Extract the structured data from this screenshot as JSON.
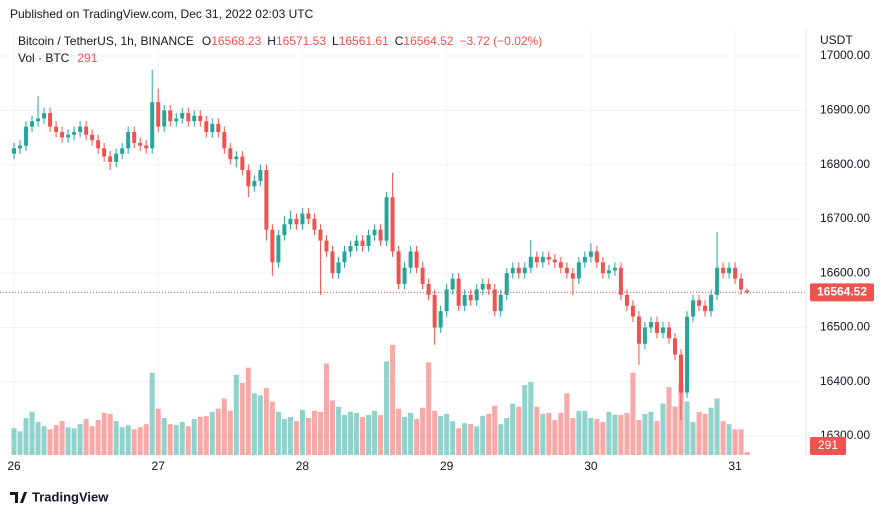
{
  "chart_data": {
    "type": "candlestick",
    "published": "Published on TradingView.com, Dec 31, 2022 02:03 UTC",
    "symbol": "Bitcoin / TetherUS, 1h, BINANCE",
    "legend_keys": [
      "O",
      "H",
      "L",
      "C"
    ],
    "change": "−3.72 (−0.02%)",
    "volume_label": "Vol · BTC",
    "currency": "USDT",
    "brand": "TradingView",
    "up_color": "#26a69a",
    "down_color": "#ef5350",
    "grid": true,
    "xlim": [
      -2.33,
      131.8
    ],
    "xticks": [
      {
        "value": 0,
        "label": "26"
      },
      {
        "value": 24,
        "label": "27"
      },
      {
        "value": 48,
        "label": "28"
      },
      {
        "value": 72,
        "label": "29"
      },
      {
        "value": 96,
        "label": "30"
      },
      {
        "value": 120,
        "label": "31"
      }
    ],
    "ylim": [
      16265,
      17048
    ],
    "yticks": [
      {
        "value": 16300,
        "label": "16300.00"
      },
      {
        "value": 16400,
        "label": "16400.00"
      },
      {
        "value": 16500,
        "label": "16500.00"
      },
      {
        "value": 16600,
        "label": "16600.00"
      },
      {
        "value": 16700,
        "label": "16700.00"
      },
      {
        "value": 16800,
        "label": "16800.00"
      },
      {
        "value": 16900,
        "label": "16900.00"
      },
      {
        "value": 17000,
        "label": "17000.00"
      }
    ],
    "x": [
      0,
      1,
      2,
      3,
      4,
      5,
      6,
      7,
      8,
      9,
      10,
      11,
      12,
      13,
      14,
      15,
      16,
      17,
      18,
      19,
      20,
      21,
      22,
      23,
      24,
      25,
      26,
      27,
      28,
      29,
      30,
      31,
      32,
      33,
      34,
      35,
      36,
      37,
      38,
      39,
      40,
      41,
      42,
      43,
      44,
      45,
      46,
      47,
      48,
      49,
      50,
      51,
      52,
      53,
      54,
      55,
      56,
      57,
      58,
      59,
      60,
      61,
      62,
      63,
      64,
      65,
      66,
      67,
      68,
      69,
      70,
      71,
      72,
      73,
      74,
      75,
      76,
      77,
      78,
      79,
      80,
      81,
      82,
      83,
      84,
      85,
      86,
      87,
      88,
      89,
      90,
      91,
      92,
      93,
      94,
      95,
      96,
      97,
      98,
      99,
      100,
      101,
      102,
      103,
      104,
      105,
      106,
      107,
      108,
      109,
      110,
      111,
      112,
      113,
      114,
      115,
      116,
      117,
      118,
      119,
      120,
      121,
      122
    ],
    "open": [
      16820,
      16830,
      16835,
      16870,
      16880,
      16885,
      16895,
      16870,
      16860,
      16850,
      16855,
      16860,
      16870,
      16855,
      16845,
      16830,
      16815,
      16805,
      16820,
      16830,
      16860,
      16840,
      16835,
      16830,
      16915,
      16870,
      16900,
      16880,
      16885,
      16895,
      16880,
      16890,
      16880,
      16860,
      16875,
      16860,
      16830,
      16810,
      16815,
      16790,
      16760,
      16770,
      16790,
      16680,
      16620,
      16670,
      16690,
      16700,
      16690,
      16710,
      16700,
      16680,
      16660,
      16640,
      16600,
      16620,
      16640,
      16650,
      16660,
      16650,
      16670,
      16680,
      16660,
      16740,
      16640,
      16580,
      16610,
      16640,
      16610,
      16580,
      16560,
      16500,
      16530,
      16570,
      16590,
      16540,
      16560,
      16550,
      16570,
      16580,
      16570,
      16530,
      16560,
      16600,
      16610,
      16600,
      16610,
      16630,
      16620,
      16630,
      16625,
      16620,
      16610,
      16600,
      16590,
      16620,
      16630,
      16640,
      16620,
      16600,
      16605,
      16610,
      16560,
      16540,
      16520,
      16470,
      16500,
      16510,
      16490,
      16500,
      16480,
      16450,
      16380,
      16520,
      16550,
      16540,
      16530,
      16560,
      16610,
      16600,
      16610,
      16590,
      16568.23
    ],
    "high": [
      16840,
      16845,
      16880,
      16890,
      16926,
      16905,
      16905,
      16880,
      16870,
      16865,
      16870,
      16880,
      16880,
      16865,
      16855,
      16840,
      16825,
      16830,
      16840,
      16870,
      16870,
      16850,
      16845,
      16975,
      16940,
      16910,
      16910,
      16895,
      16905,
      16905,
      16900,
      16900,
      16890,
      16885,
      16885,
      16870,
      16840,
      16825,
      16825,
      16800,
      16780,
      16800,
      16800,
      16690,
      16680,
      16705,
      16715,
      16710,
      16720,
      16720,
      16710,
      16690,
      16670,
      16650,
      16630,
      16650,
      16660,
      16670,
      16670,
      16680,
      16690,
      16690,
      16750,
      16785,
      16650,
      16620,
      16650,
      16650,
      16620,
      16590,
      16570,
      16540,
      16580,
      16600,
      16600,
      16570,
      16570,
      16580,
      16590,
      16590,
      16580,
      16570,
      16610,
      16620,
      16620,
      16620,
      16661,
      16640,
      16640,
      16640,
      16635,
      16630,
      16620,
      16610,
      16630,
      16640,
      16655,
      16650,
      16630,
      16615,
      16620,
      16620,
      16570,
      16550,
      16530,
      16510,
      16520,
      16520,
      16510,
      16510,
      16490,
      16460,
      16530,
      16560,
      16560,
      16550,
      16570,
      16676,
      16620,
      16620,
      16620,
      16600,
      16571.53
    ],
    "low": [
      16810,
      16820,
      16825,
      16860,
      16870,
      16875,
      16860,
      16850,
      16840,
      16840,
      16845,
      16850,
      16845,
      16835,
      16820,
      16805,
      16790,
      16795,
      16810,
      16820,
      16830,
      16825,
      16820,
      16820,
      16860,
      16860,
      16870,
      16870,
      16875,
      16870,
      16870,
      16870,
      16850,
      16850,
      16850,
      16820,
      16800,
      16795,
      16780,
      16740,
      16750,
      16760,
      16660,
      16595,
      16610,
      16660,
      16680,
      16680,
      16680,
      16690,
      16670,
      16560,
      16630,
      16590,
      16590,
      16610,
      16630,
      16640,
      16640,
      16640,
      16660,
      16650,
      16650,
      16630,
      16570,
      16570,
      16600,
      16600,
      16570,
      16550,
      16468,
      16490,
      16520,
      16560,
      16530,
      16530,
      16540,
      16540,
      16560,
      16560,
      16520,
      16520,
      16550,
      16590,
      16590,
      16590,
      16600,
      16610,
      16610,
      16615,
      16610,
      16600,
      16590,
      16560,
      16580,
      16610,
      16620,
      16610,
      16590,
      16590,
      16595,
      16550,
      16530,
      16510,
      16431,
      16460,
      16490,
      16480,
      16480,
      16470,
      16440,
      16330,
      16370,
      16510,
      16530,
      16520,
      16520,
      16550,
      16590,
      16590,
      16580,
      16560,
      16561.61
    ],
    "close": [
      16830,
      16835,
      16870,
      16880,
      16885,
      16895,
      16870,
      16860,
      16850,
      16855,
      16860,
      16870,
      16855,
      16845,
      16830,
      16815,
      16805,
      16820,
      16830,
      16860,
      16840,
      16835,
      16830,
      16915,
      16870,
      16900,
      16880,
      16885,
      16895,
      16880,
      16890,
      16880,
      16860,
      16875,
      16860,
      16830,
      16810,
      16815,
      16790,
      16760,
      16770,
      16790,
      16680,
      16620,
      16670,
      16690,
      16700,
      16690,
      16710,
      16700,
      16680,
      16660,
      16640,
      16600,
      16620,
      16640,
      16650,
      16660,
      16650,
      16670,
      16680,
      16660,
      16740,
      16640,
      16580,
      16610,
      16640,
      16610,
      16580,
      16560,
      16500,
      16530,
      16570,
      16590,
      16540,
      16560,
      16550,
      16570,
      16580,
      16570,
      16530,
      16560,
      16600,
      16610,
      16600,
      16610,
      16630,
      16620,
      16630,
      16625,
      16620,
      16610,
      16600,
      16590,
      16620,
      16630,
      16640,
      16620,
      16600,
      16605,
      16610,
      16560,
      16540,
      16520,
      16470,
      16500,
      16510,
      16490,
      16500,
      16480,
      16450,
      16380,
      16520,
      16550,
      16540,
      16530,
      16560,
      16610,
      16600,
      16610,
      16590,
      16570,
      16564.52
    ],
    "volume": [
      2600,
      2300,
      3600,
      4200,
      3200,
      2800,
      2500,
      2900,
      3300,
      2700,
      2600,
      3000,
      3500,
      2800,
      3400,
      4100,
      4000,
      3300,
      2700,
      2900,
      2500,
      2700,
      3000,
      8000,
      4500,
      3600,
      3000,
      2900,
      3200,
      2800,
      3500,
      3700,
      3800,
      4200,
      4500,
      5500,
      4300,
      7800,
      7000,
      8500,
      6000,
      5800,
      6500,
      5200,
      4200,
      3500,
      3700,
      3300,
      4400,
      3600,
      4300,
      4200,
      8900,
      5300,
      4700,
      3900,
      4200,
      4100,
      3700,
      3900,
      4300,
      3900,
      9100,
      10700,
      4500,
      3700,
      4100,
      3500,
      4600,
      9000,
      4300,
      3800,
      4000,
      3300,
      2600,
      3100,
      3000,
      2800,
      3800,
      4000,
      4800,
      3000,
      3600,
      5000,
      4700,
      6800,
      7100,
      4700,
      4000,
      4100,
      3400,
      4100,
      6000,
      3600,
      4300,
      4300,
      3600,
      3500,
      3200,
      4200,
      3900,
      3900,
      4100,
      8000,
      3400,
      4000,
      4200,
      3300,
      5000,
      6600,
      4700,
      7000,
      5200,
      3200,
      4200,
      4000,
      4600,
      5500,
      3300,
      3000,
      2500,
      2500,
      291
    ]
  }
}
